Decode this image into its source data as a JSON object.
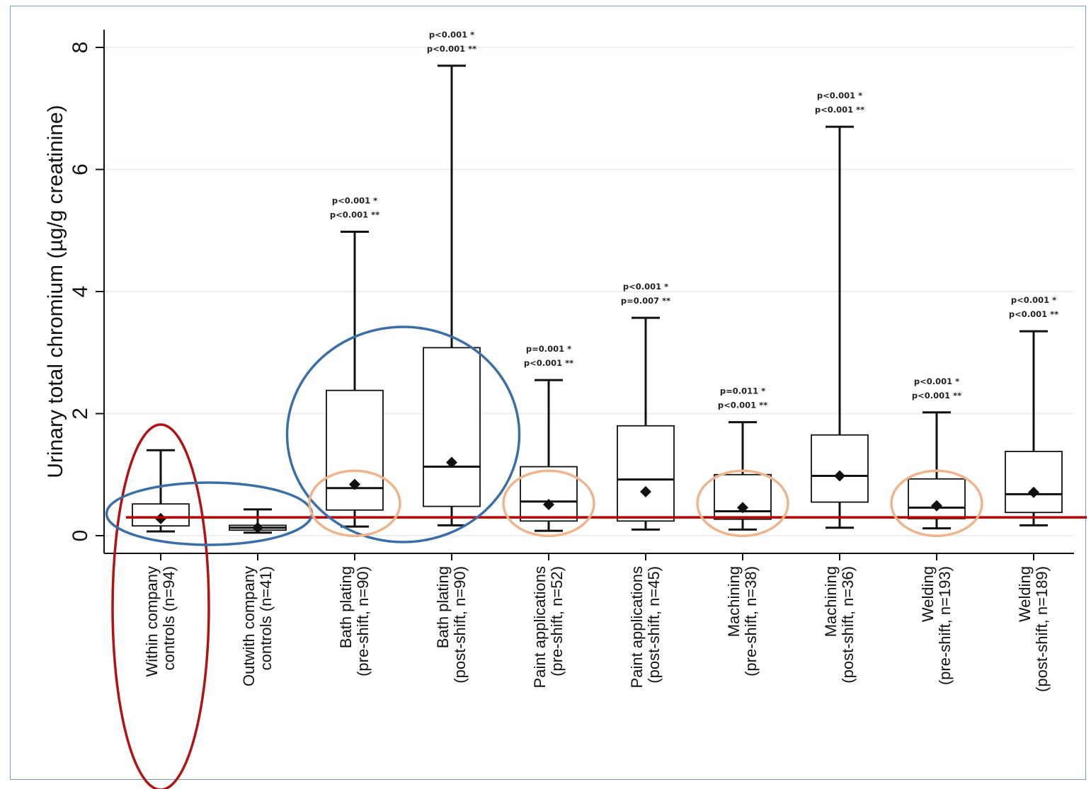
{
  "chart_data": {
    "type": "box",
    "title": "",
    "xlabel": "",
    "ylabel": "Urinary total chromium (µg/g creatinine)",
    "ylim": [
      -0.3,
      8.3
    ],
    "yticks": [
      0,
      2,
      4,
      6,
      8
    ],
    "grid": true,
    "reference_line_y": 0.3,
    "colors": {
      "box_stroke": "#111111",
      "grid": "#e4ecec",
      "reference_line": "#c00000",
      "red_ellipse": "#b31212",
      "blue_ellipse": "#3a6ea8",
      "orange_ellipse": "#f0b48c"
    },
    "categories": [
      {
        "label1": "Within company",
        "label2": "controls (n=94)",
        "min": 0.07,
        "q1": 0.16,
        "median": 0.3,
        "q3": 0.52,
        "max": 1.4,
        "mean": 0.28,
        "annotation": []
      },
      {
        "label1": "Outwith company",
        "label2": "controls (n=41)",
        "min": 0.05,
        "q1": 0.09,
        "median": 0.13,
        "q3": 0.17,
        "max": 0.43,
        "mean": 0.13,
        "annotation": []
      },
      {
        "label1": "Bath plating",
        "label2": "(pre-shift, n=90)",
        "min": 0.15,
        "q1": 0.42,
        "median": 0.78,
        "q3": 2.38,
        "max": 4.98,
        "mean": 0.84,
        "annotation": [
          "p<0.001 *",
          "p<0.001 **"
        ]
      },
      {
        "label1": "Bath plating",
        "label2": "(post-shift, n=90)",
        "min": 0.17,
        "q1": 0.48,
        "median": 1.13,
        "q3": 3.08,
        "max": 7.7,
        "mean": 1.2,
        "annotation": [
          "p<0.001 *",
          "p<0.001 **"
        ]
      },
      {
        "label1": "Paint applications",
        "label2": "(pre-shift, n=52)",
        "min": 0.08,
        "q1": 0.24,
        "median": 0.56,
        "q3": 1.13,
        "max": 2.55,
        "mean": 0.51,
        "annotation": [
          "p=0.001 *",
          "p<0.001 **"
        ]
      },
      {
        "label1": "Paint applications",
        "label2": "(post-shift, n=45)",
        "min": 0.1,
        "q1": 0.24,
        "median": 0.92,
        "q3": 1.8,
        "max": 3.57,
        "mean": 0.72,
        "annotation": [
          "p<0.001 *",
          "p=0.007 **"
        ]
      },
      {
        "label1": "Machining",
        "label2": "(pre-shift, n=38)",
        "min": 0.1,
        "q1": 0.27,
        "median": 0.4,
        "q3": 1.0,
        "max": 1.86,
        "mean": 0.46,
        "annotation": [
          "p=0.011 *",
          "p<0.001 **"
        ]
      },
      {
        "label1": "Machining",
        "label2": "(post-shift, n=36)",
        "min": 0.13,
        "q1": 0.55,
        "median": 0.98,
        "q3": 1.65,
        "max": 6.7,
        "mean": 0.98,
        "annotation": [
          "p<0.001 *",
          "p<0.001 **"
        ]
      },
      {
        "label1": "Welding",
        "label2": "(pre-shift, n=193)",
        "min": 0.12,
        "q1": 0.28,
        "median": 0.46,
        "q3": 0.93,
        "max": 2.02,
        "mean": 0.49,
        "annotation": [
          "p<0.001 *",
          "p<0.001 **"
        ]
      },
      {
        "label1": "Welding",
        "label2": "(post-shift, n=189)",
        "min": 0.17,
        "q1": 0.38,
        "median": 0.68,
        "q3": 1.38,
        "max": 3.35,
        "mean": 0.71,
        "annotation": [
          "p<0.001 *",
          "p<0.001 **"
        ]
      }
    ],
    "highlights": [
      {
        "shape": "ellipse",
        "color": "red",
        "around": [
          "Within company controls (n=94)"
        ]
      },
      {
        "shape": "ellipse",
        "color": "blue",
        "around": [
          "Within company controls (n=94)",
          "Outwith company controls (n=41)"
        ]
      },
      {
        "shape": "ellipse",
        "color": "blue",
        "around": [
          "Bath plating (pre-shift, n=90)",
          "Bath plating (post-shift, n=90)"
        ]
      },
      {
        "shape": "ellipse",
        "color": "orange",
        "around": [
          "Bath plating (pre-shift, n=90)"
        ]
      },
      {
        "shape": "ellipse",
        "color": "orange",
        "around": [
          "Paint applications (pre-shift, n=52)"
        ]
      },
      {
        "shape": "ellipse",
        "color": "orange",
        "around": [
          "Machining (pre-shift, n=38)"
        ]
      },
      {
        "shape": "ellipse",
        "color": "orange",
        "around": [
          "Welding (pre-shift, n=193)"
        ]
      }
    ]
  }
}
